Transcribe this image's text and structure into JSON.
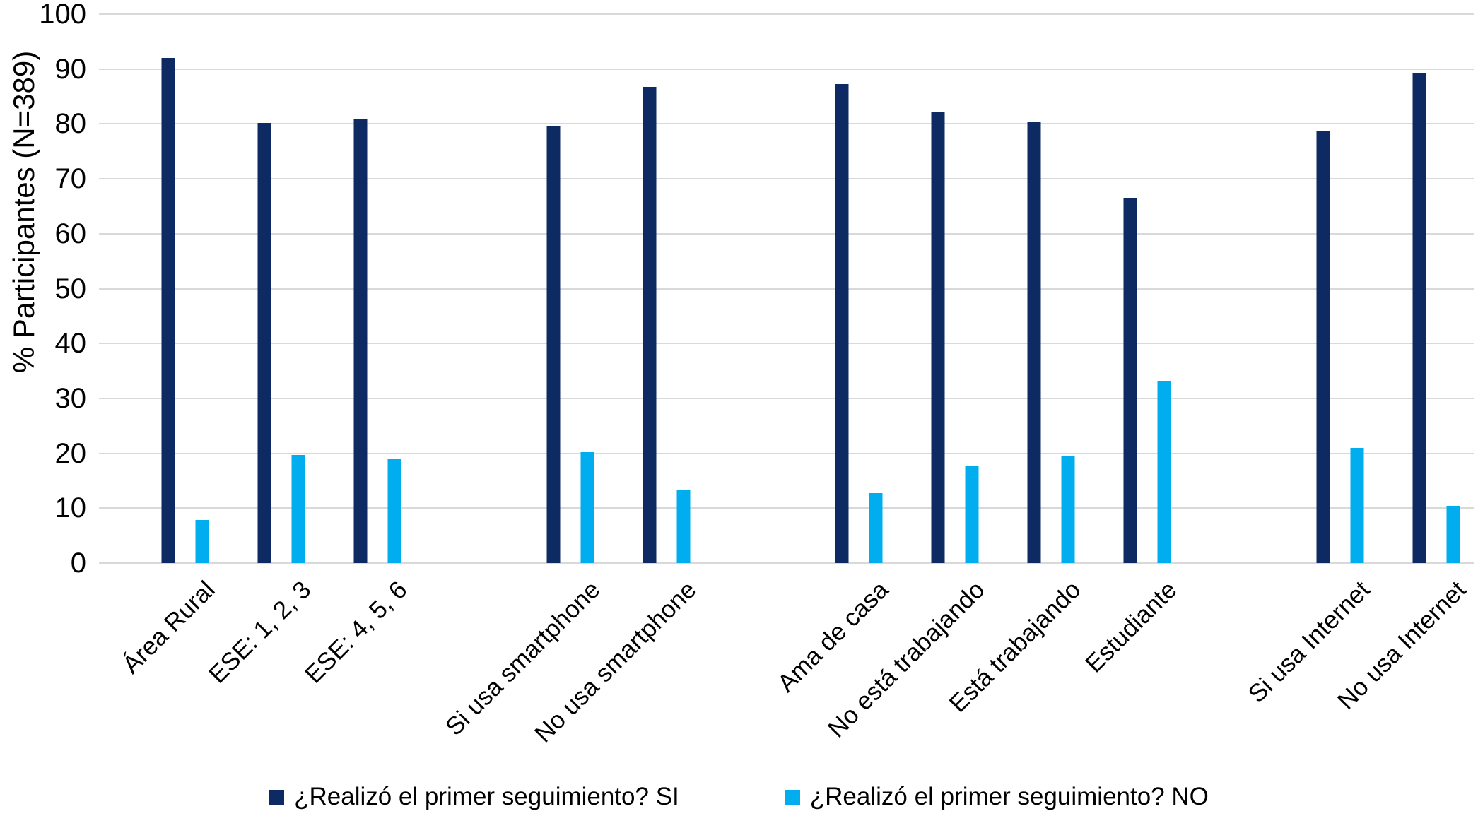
{
  "chart_data": {
    "type": "bar",
    "title": "",
    "xlabel": "",
    "ylabel": "% Participantes (N=389)",
    "ylim": [
      0,
      100
    ],
    "yticks": [
      0,
      10,
      20,
      30,
      40,
      50,
      60,
      70,
      80,
      90,
      100
    ],
    "grid": true,
    "legend_position": "bottom",
    "categories": [
      "Área Rural",
      "ESE: 1, 2, 3",
      "ESE: 4, 5, 6",
      "Si usa smartphone",
      "No usa smartphone",
      "Ama de casa",
      "No está trabajando",
      "Está trabajando",
      "Estudiante",
      "Si usa Internet",
      "No usa Internet"
    ],
    "groups": [
      [
        0,
        1,
        2
      ],
      [
        3,
        4
      ],
      [
        5,
        6,
        7,
        8
      ],
      [
        9,
        10
      ]
    ],
    "series": [
      {
        "name": "¿Realizó el primer seguimiento? SI",
        "color": "#0d2a63",
        "values": [
          92.0,
          80.2,
          81.0,
          79.7,
          86.7,
          87.2,
          82.3,
          80.5,
          66.5,
          78.8,
          89.3
        ]
      },
      {
        "name": "¿Realizó el primer seguimiento? NO",
        "color": "#00aeef",
        "values": [
          7.9,
          19.7,
          18.9,
          20.2,
          13.2,
          12.8,
          17.6,
          19.4,
          33.2,
          21.0,
          10.4
        ]
      }
    ]
  },
  "legend": {
    "si_label": "¿Realizó el primer seguimiento? SI",
    "no_label": "¿Realizó el primer seguimiento? NO"
  },
  "axis": {
    "y_title": "% Participantes (N=389)"
  },
  "colors": {
    "si": "#0d2a63",
    "no": "#00aeef",
    "gridline": "#d9d9d9",
    "text": "#000000",
    "background": "#ffffff"
  }
}
